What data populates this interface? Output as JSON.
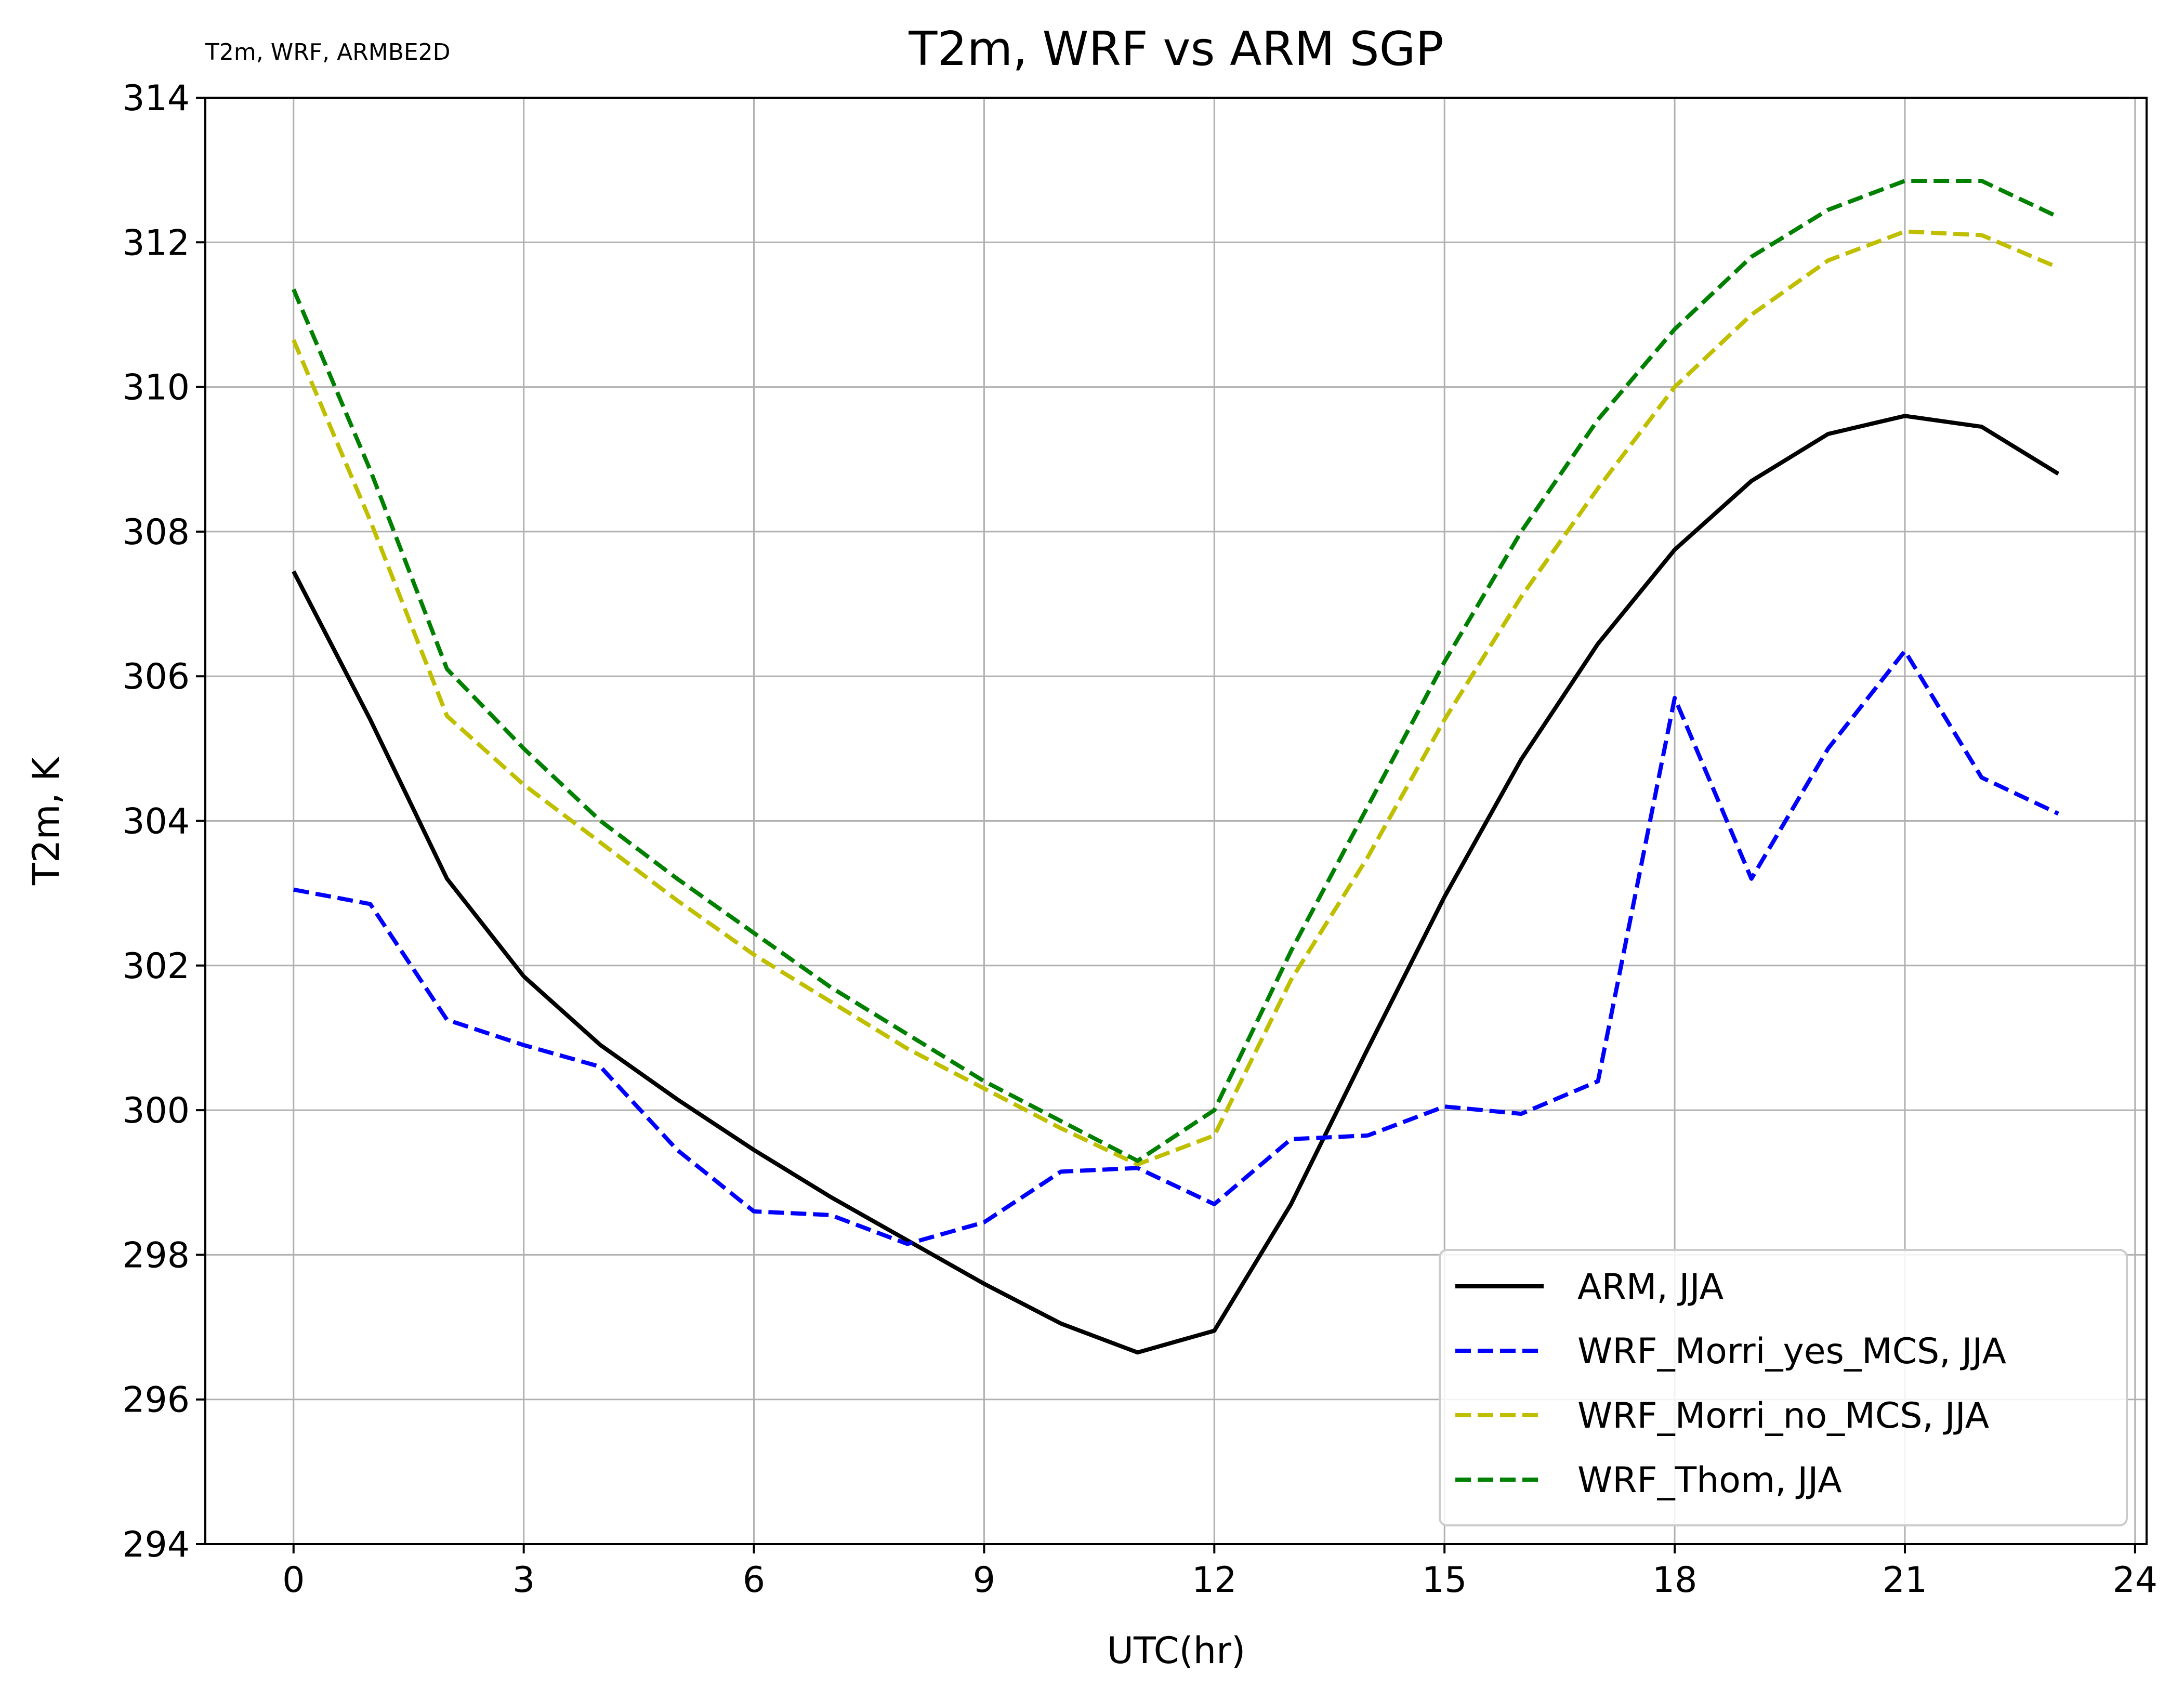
{
  "chart_data": {
    "type": "line",
    "title": "T2m, WRF vs ARM SGP",
    "subtitle": "T2m, WRF, ARMBE2D",
    "xlabel": "UTC(hr)",
    "ylabel": "T2m, K",
    "xlim": [
      -1.15,
      24.15
    ],
    "ylim": [
      294,
      314
    ],
    "xticks": [
      0,
      3,
      6,
      9,
      12,
      15,
      18,
      21,
      24
    ],
    "yticks": [
      294,
      296,
      298,
      300,
      302,
      304,
      306,
      308,
      310,
      312,
      314
    ],
    "grid": true,
    "legend_position": "lower-right",
    "x": [
      0,
      1,
      2,
      3,
      4,
      5,
      6,
      7,
      8,
      9,
      10,
      11,
      12,
      13,
      14,
      15,
      16,
      17,
      18,
      19,
      20,
      21,
      22,
      23
    ],
    "series": [
      {
        "name": "ARM, JJA",
        "color": "#000000",
        "dash": "solid",
        "values": [
          307.45,
          305.4,
          303.2,
          301.85,
          300.9,
          300.15,
          299.45,
          298.8,
          298.2,
          297.6,
          297.05,
          296.65,
          296.95,
          298.7,
          300.85,
          302.95,
          304.85,
          306.45,
          307.75,
          308.7,
          309.35,
          309.6,
          309.45,
          308.8
        ]
      },
      {
        "name": "WRF_Morri_yes_MCS, JJA",
        "color": "#0000ff",
        "dash": "dashed",
        "values": [
          303.05,
          302.85,
          301.25,
          300.9,
          300.6,
          299.45,
          298.6,
          298.55,
          298.15,
          298.45,
          299.15,
          299.2,
          298.7,
          299.6,
          299.65,
          300.05,
          299.95,
          300.4,
          305.7,
          303.2,
          305.0,
          306.35,
          304.6,
          304.1
        ]
      },
      {
        "name": "WRF_Morri_no_MCS, JJA",
        "color": "#bfbf00",
        "dash": "dashed",
        "values": [
          310.65,
          308.15,
          305.45,
          304.5,
          303.7,
          302.9,
          302.15,
          301.5,
          300.85,
          300.3,
          299.75,
          299.25,
          299.65,
          301.8,
          303.5,
          305.4,
          307.1,
          308.6,
          310.0,
          311.0,
          311.75,
          312.15,
          312.1,
          311.65
        ]
      },
      {
        "name": "WRF_Thom, JJA",
        "color": "#008000",
        "dash": "dashed",
        "values": [
          311.35,
          308.85,
          306.1,
          305.0,
          304.0,
          303.2,
          302.45,
          301.7,
          301.05,
          300.4,
          299.85,
          299.3,
          300.0,
          302.2,
          304.2,
          306.2,
          308.0,
          309.55,
          310.8,
          311.8,
          312.45,
          312.85,
          312.85,
          312.35
        ]
      }
    ]
  }
}
